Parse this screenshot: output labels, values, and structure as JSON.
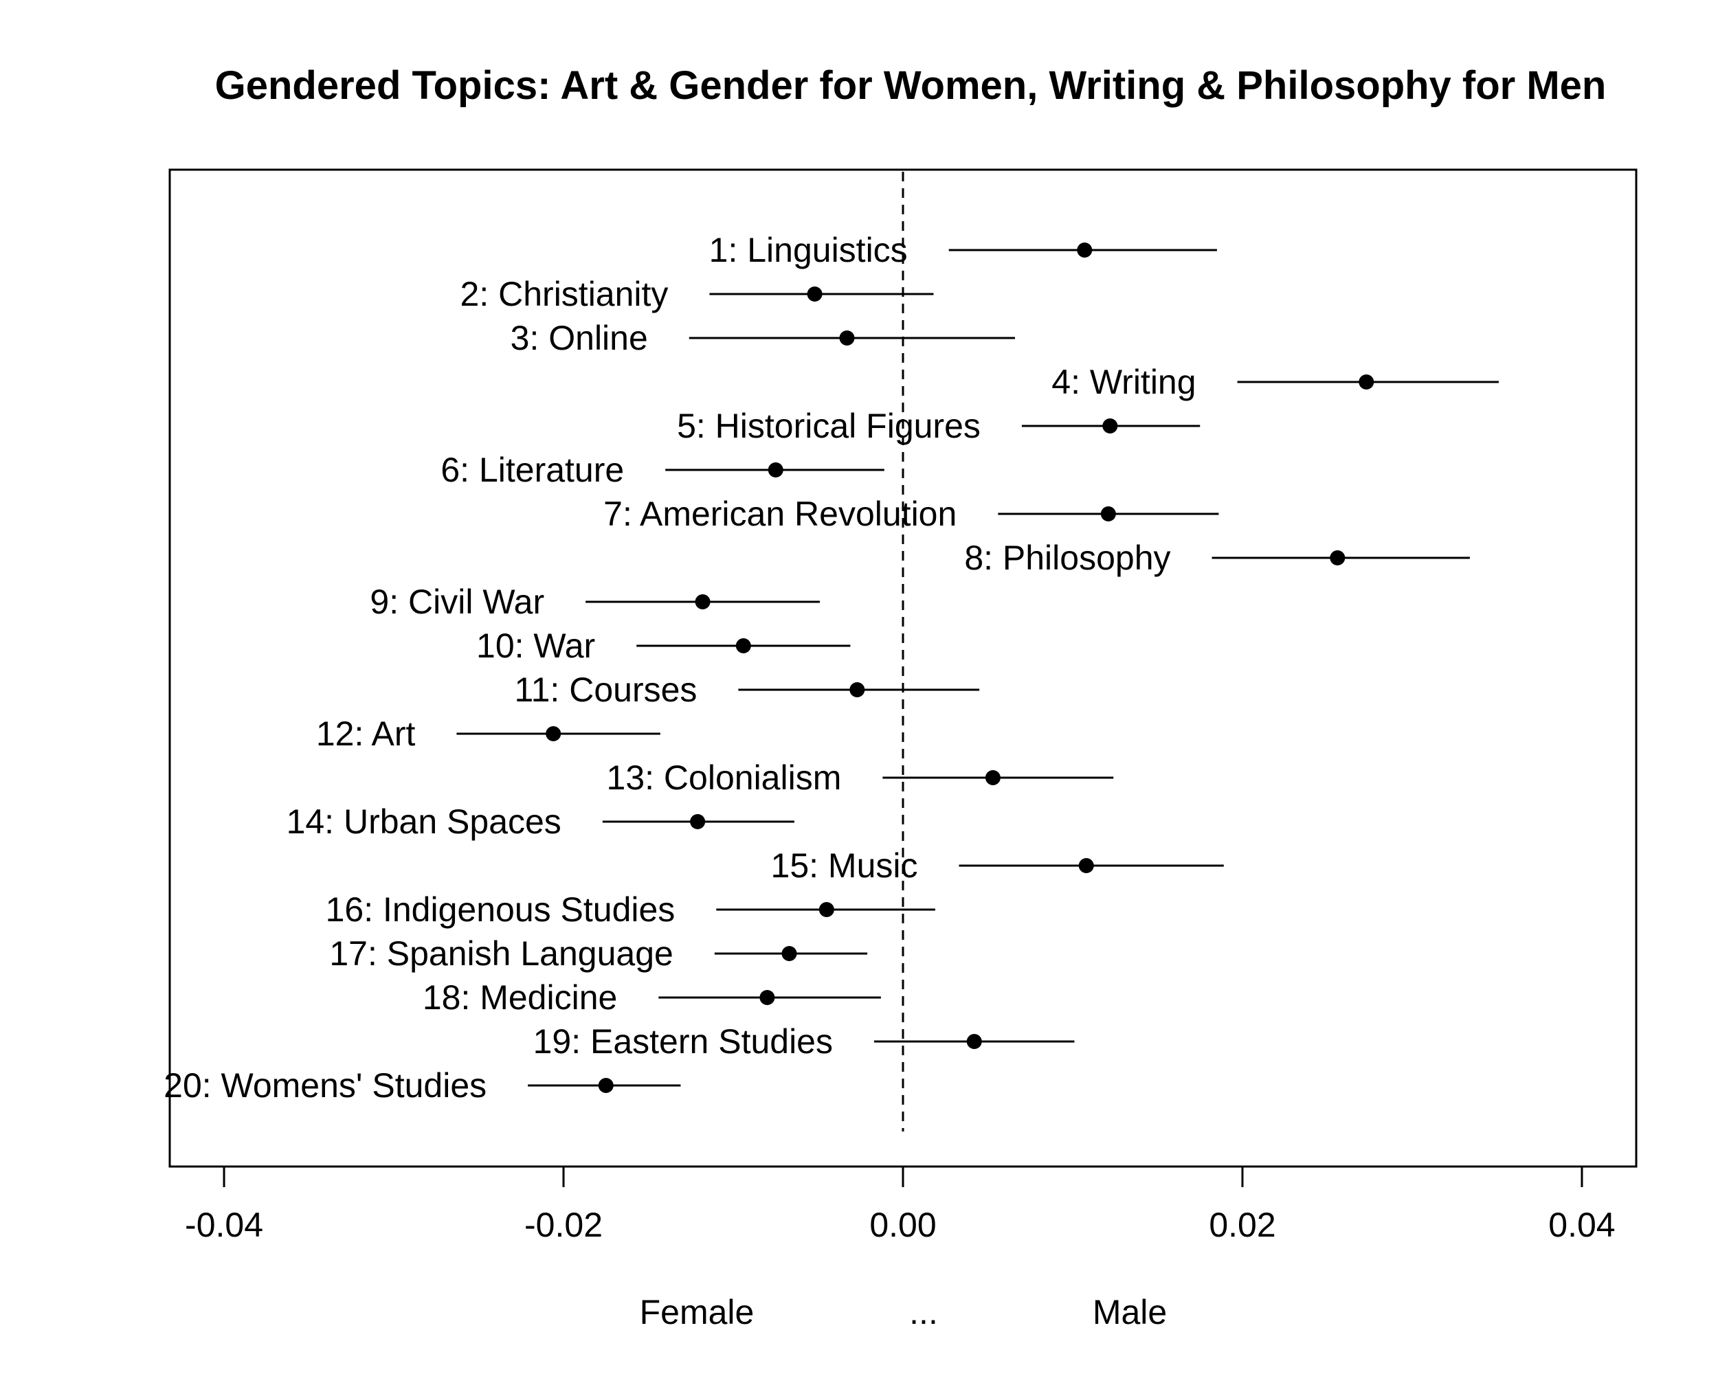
{
  "chart_data": {
    "type": "scatter",
    "title": "Gendered Topics: Art & Gender for Women, Writing & Philosophy for Men",
    "xlabel_parts": [
      "Female",
      "...",
      "Male"
    ],
    "xlim": [
      -0.0432,
      0.0432
    ],
    "xticks": [
      -0.04,
      -0.02,
      0.0,
      0.02,
      0.04
    ],
    "xtick_labels": [
      "-0.04",
      "-0.02",
      "0.00",
      "0.02",
      "0.04"
    ],
    "reference_line": 0,
    "point_color": "#000000",
    "topics": [
      {
        "label": "1: Linguistics",
        "estimate": 0.0107,
        "lower": 0.0027,
        "upper": 0.0185
      },
      {
        "label": "2: Christianity",
        "estimate": -0.0052,
        "lower": -0.0114,
        "upper": 0.0018
      },
      {
        "label": "3: Online",
        "estimate": -0.0033,
        "lower": -0.0126,
        "upper": 0.0066
      },
      {
        "label": "4: Writing",
        "estimate": 0.0273,
        "lower": 0.0197,
        "upper": 0.0351
      },
      {
        "label": "5: Historical Figures",
        "estimate": 0.0122,
        "lower": 0.007,
        "upper": 0.0175
      },
      {
        "label": "6: Literature",
        "estimate": -0.0075,
        "lower": -0.014,
        "upper": -0.0011
      },
      {
        "label": "7: American Revolution",
        "estimate": 0.0121,
        "lower": 0.0056,
        "upper": 0.0186
      },
      {
        "label": "8: Philosophy",
        "estimate": 0.0256,
        "lower": 0.0182,
        "upper": 0.0334
      },
      {
        "label": "9: Civil War",
        "estimate": -0.0118,
        "lower": -0.0187,
        "upper": -0.0049
      },
      {
        "label": "10: War",
        "estimate": -0.0094,
        "lower": -0.0157,
        "upper": -0.0031
      },
      {
        "label": "11: Courses",
        "estimate": -0.0027,
        "lower": -0.0097,
        "upper": 0.0045
      },
      {
        "label": "12: Art",
        "estimate": -0.0206,
        "lower": -0.0263,
        "upper": -0.0143
      },
      {
        "label": "13: Colonialism",
        "estimate": 0.0053,
        "lower": -0.0012,
        "upper": 0.0124
      },
      {
        "label": "14: Urban Spaces",
        "estimate": -0.0121,
        "lower": -0.0177,
        "upper": -0.0064
      },
      {
        "label": "15: Music",
        "estimate": 0.0108,
        "lower": 0.0033,
        "upper": 0.0189
      },
      {
        "label": "16: Indigenous Studies",
        "estimate": -0.0045,
        "lower": -0.011,
        "upper": 0.0019
      },
      {
        "label": "17: Spanish Language",
        "estimate": -0.0067,
        "lower": -0.0111,
        "upper": -0.0021
      },
      {
        "label": "18: Medicine",
        "estimate": -0.008,
        "lower": -0.0144,
        "upper": -0.0013
      },
      {
        "label": "19: Eastern Studies",
        "estimate": 0.0042,
        "lower": -0.0017,
        "upper": 0.0101
      },
      {
        "label": "20: Womens' Studies",
        "estimate": -0.0175,
        "lower": -0.0221,
        "upper": -0.0131
      }
    ]
  }
}
